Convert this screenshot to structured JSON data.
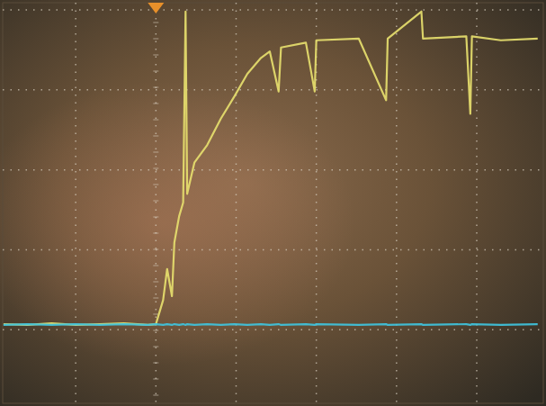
{
  "chart_data": {
    "type": "line",
    "x": [
      -1.9,
      -1.6,
      -1.3,
      -1.0,
      -0.7,
      -0.4,
      -0.1,
      0,
      0.09,
      0.14,
      0.2,
      0.23,
      0.29,
      0.34,
      0.37,
      0.39,
      0.48,
      0.64,
      0.81,
      0.98,
      1.14,
      1.31,
      1.42,
      1.53,
      1.56,
      1.87,
      1.98,
      2.0,
      2.53,
      2.87,
      2.89,
      3.31,
      3.33,
      3.87,
      3.92,
      3.94,
      4.3,
      4.76
    ],
    "series": [
      {
        "color": "#e6de6e",
        "line_style": "solid",
        "values": [
          0.07,
          0.06,
          0.08,
          0.06,
          0.07,
          0.08,
          0.06,
          0.07,
          0.37,
          0.76,
          0.42,
          1.09,
          1.42,
          1.59,
          3.98,
          1.7,
          2.09,
          2.31,
          2.64,
          2.92,
          3.2,
          3.4,
          3.48,
          2.98,
          3.53,
          3.59,
          2.98,
          3.62,
          3.64,
          2.87,
          3.64,
          3.98,
          3.64,
          3.67,
          2.7,
          3.67,
          3.62,
          3.64
        ]
      },
      {
        "color": "#3fc4de",
        "line_style": "solid",
        "values": [
          0.06,
          0.07,
          0.06,
          0.07,
          0.06,
          0.07,
          0.06,
          0.07,
          0.06,
          0.07,
          0.06,
          0.07,
          0.06,
          0.07,
          0.06,
          0.07,
          0.06,
          0.07,
          0.06,
          0.07,
          0.06,
          0.07,
          0.06,
          0.07,
          0.06,
          0.07,
          0.06,
          0.07,
          0.06,
          0.07,
          0.06,
          0.07,
          0.06,
          0.07,
          0.06,
          0.07,
          0.06,
          0.07
        ]
      }
    ],
    "xlim": [
      -1.91,
      4.83
    ],
    "ylim": [
      -0.92,
      4.09
    ],
    "xticks": [
      -1,
      0,
      1,
      2,
      3,
      4
    ],
    "yticks": [
      0,
      1,
      2,
      3,
      4
    ],
    "grid": true,
    "tick_labels": false
  }
}
